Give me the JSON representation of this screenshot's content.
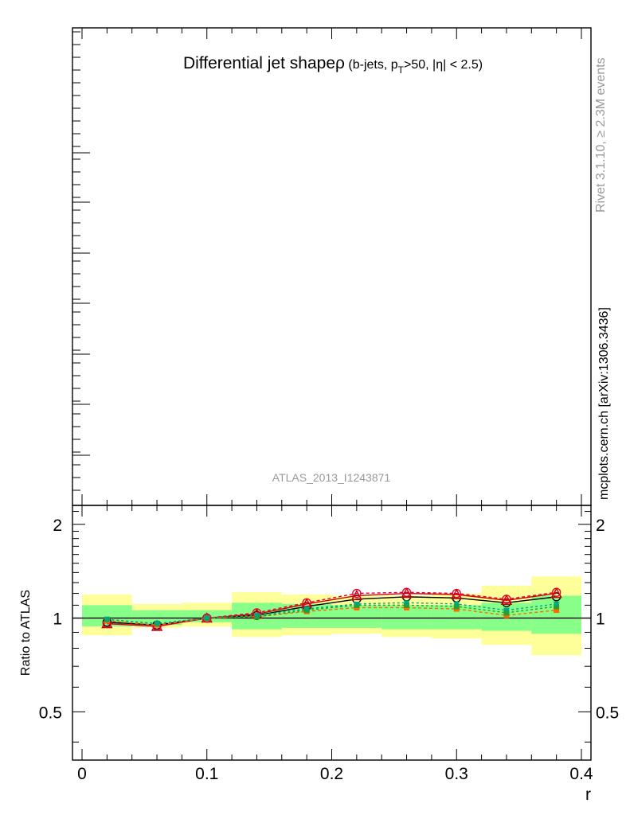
{
  "chart_data": {
    "type": "line",
    "title_main": "Differential jet shapeρ",
    "title_cuts_a": " (b-jets, p",
    "title_cuts_sub": "T",
    "title_cuts_b": ">50, |η| < 2.5)",
    "analysis_label": "ATLAS_2013_I1243871",
    "side_label_rivet": "Rivet 3.1.10, ≥ 2.3M events",
    "side_label_site": "mcplots.cern.ch [arXiv:1306.3436]",
    "ylabel": "Ratio to ATLAS",
    "xlabel": "r",
    "xlim": [
      0,
      0.4
    ],
    "ylim_ratio": [
      0.35,
      2.3
    ],
    "log_y_ratio": true,
    "x_ticks": [
      {
        "value": 0,
        "label": "0"
      },
      {
        "value": 0.1,
        "label": "0.1"
      },
      {
        "value": 0.2,
        "label": "0.2"
      },
      {
        "value": 0.3,
        "label": "0.3"
      },
      {
        "value": 0.4,
        "label": "0.4"
      }
    ],
    "y_ticks": [
      {
        "value": 0.5,
        "label": "0.5"
      },
      {
        "value": 1,
        "label": "1"
      },
      {
        "value": 2,
        "label": "2"
      }
    ],
    "bins": [
      0,
      0.04,
      0.08,
      0.12,
      0.16,
      0.2,
      0.24,
      0.28,
      0.32,
      0.36,
      0.4
    ],
    "x": [
      0.02,
      0.06,
      0.1,
      0.14,
      0.18,
      0.22,
      0.26,
      0.3,
      0.34,
      0.38
    ],
    "band_inner": [
      [
        0.94,
        1.1
      ],
      [
        0.95,
        1.06
      ],
      [
        0.97,
        1.06
      ],
      [
        0.92,
        1.12
      ],
      [
        0.93,
        1.11
      ],
      [
        0.93,
        1.1
      ],
      [
        0.92,
        1.1
      ],
      [
        0.92,
        1.1
      ],
      [
        0.91,
        1.12
      ],
      [
        0.89,
        1.18
      ]
    ],
    "band_outer": [
      [
        0.88,
        1.19
      ],
      [
        0.93,
        1.11
      ],
      [
        0.94,
        1.12
      ],
      [
        0.87,
        1.21
      ],
      [
        0.88,
        1.19
      ],
      [
        0.89,
        1.18
      ],
      [
        0.87,
        1.18
      ],
      [
        0.86,
        1.2
      ],
      [
        0.82,
        1.27
      ],
      [
        0.76,
        1.36
      ]
    ],
    "series": [
      {
        "values": [
          0.97,
          0.95,
          1.0,
          1.02,
          1.09,
          1.15,
          1.17,
          1.16,
          1.12,
          1.17
        ],
        "color": "#000000",
        "dash": "",
        "marker": "circle-open"
      },
      {
        "values": [
          0.96,
          0.94,
          1.0,
          1.03,
          1.11,
          1.18,
          1.2,
          1.19,
          1.14,
          1.2
        ],
        "color": "#cc0000",
        "dash": "",
        "marker": "triangle-open"
      },
      {
        "values": [
          0.96,
          0.94,
          1.0,
          1.04,
          1.12,
          1.2,
          1.21,
          1.2,
          1.15,
          1.21
        ],
        "color": "#e8003a",
        "dash": "4,3",
        "marker": "circle-open"
      },
      {
        "values": [
          0.98,
          0.95,
          1.0,
          1.01,
          1.05,
          1.08,
          1.08,
          1.07,
          1.02,
          1.06
        ],
        "color": "#ff6a00",
        "dash": "4,3",
        "marker": "square"
      },
      {
        "values": [
          0.99,
          0.96,
          1.0,
          1.01,
          1.06,
          1.1,
          1.1,
          1.09,
          1.04,
          1.09
        ],
        "color": "#2a9d2a",
        "dash": "3,3",
        "marker": "square"
      },
      {
        "values": [
          0.99,
          0.96,
          1.0,
          1.02,
          1.07,
          1.11,
          1.12,
          1.11,
          1.06,
          1.11
        ],
        "color": "#00a58a",
        "dash": "3,3",
        "marker": "triangle-down"
      }
    ]
  }
}
